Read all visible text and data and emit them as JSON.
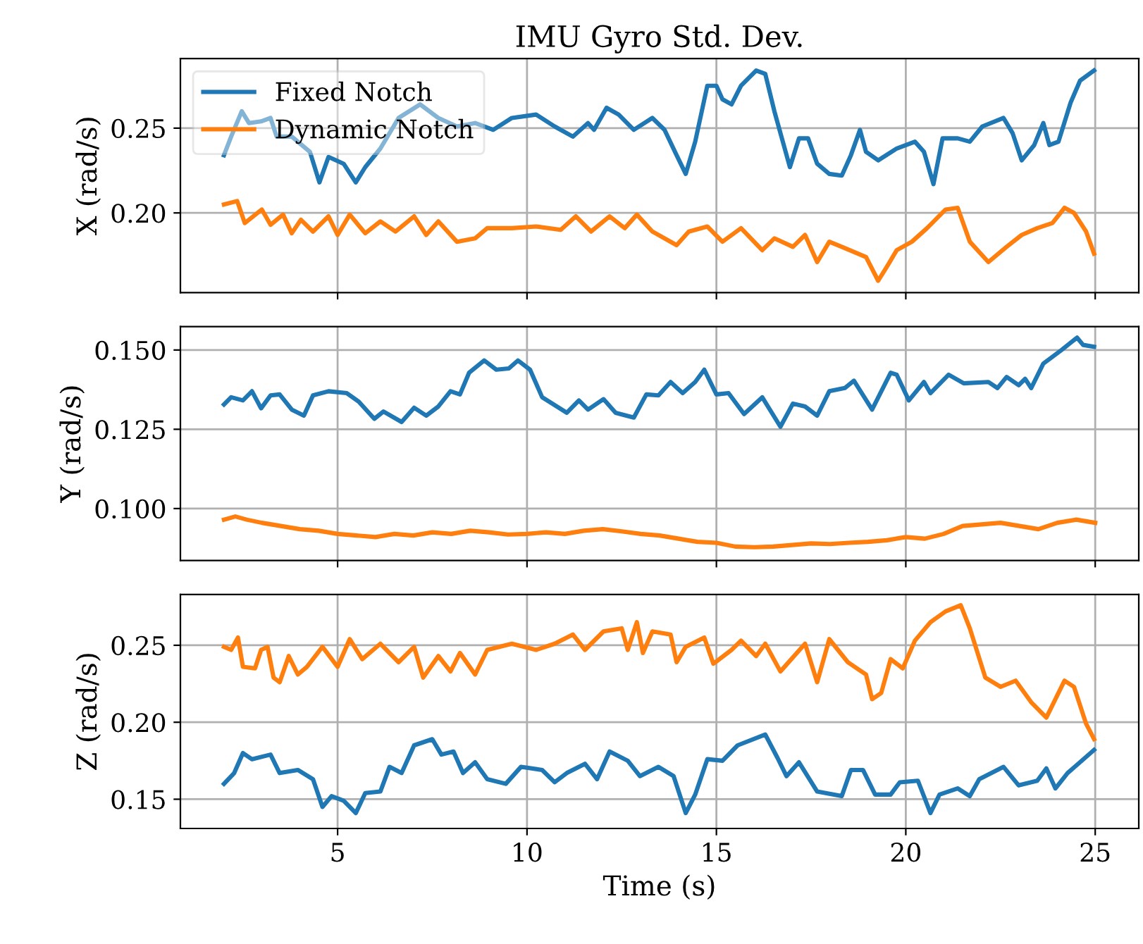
{
  "chart_data": [
    {
      "type": "line",
      "title": "IMU Gyro Std. Dev.",
      "ylabel": "X (rad/s)",
      "xlim": [
        0.85,
        26.15
      ],
      "xticks": [
        5,
        10,
        15,
        20,
        25
      ],
      "ylim": [
        0.153,
        0.291
      ],
      "yticks": [
        {
          "value": 0.2,
          "label": "0.20"
        },
        {
          "value": 0.25,
          "label": "0.25"
        }
      ],
      "grid": true,
      "legend": "top left",
      "tick_labels": "y",
      "series": [
        {
          "name": "Fixed Notch",
          "color": "#1f77b4",
          "x": [
            2.0,
            2.19,
            2.47,
            2.66,
            2.98,
            3.23,
            3.39,
            3.79,
            4.27,
            4.52,
            4.76,
            5.16,
            5.48,
            5.73,
            6.13,
            6.61,
            7.18,
            7.66,
            8.15,
            8.63,
            9.11,
            9.6,
            10.24,
            10.73,
            11.21,
            11.61,
            11.77,
            12.1,
            12.42,
            12.82,
            13.31,
            13.63,
            13.95,
            14.19,
            14.44,
            14.76,
            15.0,
            15.16,
            15.4,
            15.65,
            16.05,
            16.29,
            16.53,
            16.94,
            17.18,
            17.42,
            17.66,
            17.98,
            18.31,
            18.55,
            18.79,
            18.95,
            19.27,
            19.76,
            20.24,
            20.48,
            20.73,
            20.97,
            21.37,
            21.69,
            22.02,
            22.58,
            22.82,
            23.06,
            23.39,
            23.63,
            23.79,
            24.03,
            24.35,
            24.6,
            24.97
          ],
          "values": [
            0.234,
            0.245,
            0.26,
            0.253,
            0.254,
            0.256,
            0.245,
            0.245,
            0.236,
            0.218,
            0.233,
            0.229,
            0.218,
            0.227,
            0.238,
            0.256,
            0.264,
            0.256,
            0.251,
            0.253,
            0.249,
            0.256,
            0.258,
            0.251,
            0.245,
            0.253,
            0.249,
            0.262,
            0.258,
            0.249,
            0.256,
            0.249,
            0.234,
            0.223,
            0.242,
            0.275,
            0.275,
            0.267,
            0.264,
            0.275,
            0.284,
            0.282,
            0.26,
            0.227,
            0.244,
            0.244,
            0.229,
            0.223,
            0.222,
            0.234,
            0.249,
            0.236,
            0.231,
            0.238,
            0.242,
            0.236,
            0.217,
            0.244,
            0.244,
            0.242,
            0.251,
            0.256,
            0.247,
            0.231,
            0.24,
            0.253,
            0.24,
            0.242,
            0.265,
            0.278,
            0.284
          ]
        },
        {
          "name": "Dynamic Notch",
          "color": "#ff7f0e",
          "x": [
            2.0,
            2.35,
            2.55,
            3.0,
            3.23,
            3.56,
            3.79,
            4.03,
            4.35,
            4.76,
            5.0,
            5.32,
            5.73,
            6.13,
            6.53,
            7.02,
            7.34,
            7.66,
            8.15,
            8.63,
            8.95,
            9.6,
            10.24,
            10.89,
            11.29,
            11.69,
            12.18,
            12.58,
            12.9,
            13.31,
            13.95,
            14.27,
            14.76,
            15.16,
            15.65,
            16.21,
            16.53,
            17.02,
            17.34,
            17.66,
            17.98,
            18.31,
            18.95,
            19.27,
            19.52,
            19.76,
            20.16,
            20.56,
            21.05,
            21.37,
            21.69,
            22.18,
            22.66,
            23.06,
            23.47,
            23.87,
            24.19,
            24.44,
            24.76,
            24.97
          ],
          "values": [
            0.205,
            0.207,
            0.194,
            0.202,
            0.193,
            0.199,
            0.188,
            0.196,
            0.189,
            0.198,
            0.187,
            0.199,
            0.188,
            0.195,
            0.189,
            0.198,
            0.187,
            0.195,
            0.183,
            0.185,
            0.191,
            0.191,
            0.192,
            0.19,
            0.198,
            0.189,
            0.198,
            0.191,
            0.199,
            0.189,
            0.181,
            0.189,
            0.192,
            0.183,
            0.191,
            0.178,
            0.185,
            0.18,
            0.187,
            0.171,
            0.183,
            0.18,
            0.174,
            0.16,
            0.169,
            0.178,
            0.183,
            0.191,
            0.202,
            0.203,
            0.183,
            0.171,
            0.18,
            0.187,
            0.191,
            0.194,
            0.203,
            0.2,
            0.189,
            0.176
          ]
        }
      ]
    },
    {
      "type": "line",
      "ylabel": "Y (rad/s)",
      "xlim": [
        0.85,
        26.15
      ],
      "xticks": [
        5,
        10,
        15,
        20,
        25
      ],
      "ylim": [
        0.0836,
        0.1574
      ],
      "yticks": [
        {
          "value": 0.1,
          "label": "0.100"
        },
        0.125,
        {
          "value": 0.15,
          "label": "0.150"
        }
      ],
      "grid": true,
      "tick_labels": "y",
      "series": [
        {
          "color": "#1f77b4",
          "x": [
            2.0,
            2.19,
            2.5,
            2.74,
            2.98,
            3.23,
            3.47,
            3.79,
            4.11,
            4.35,
            4.76,
            5.24,
            5.56,
            5.97,
            6.21,
            6.69,
            7.02,
            7.34,
            7.66,
            7.98,
            8.23,
            8.47,
            8.87,
            9.19,
            9.52,
            9.76,
            10.08,
            10.4,
            11.05,
            11.37,
            11.61,
            12.02,
            12.34,
            12.82,
            13.15,
            13.47,
            13.79,
            14.11,
            14.44,
            14.68,
            15.0,
            15.32,
            15.73,
            16.21,
            16.69,
            17.02,
            17.34,
            17.66,
            17.98,
            18.39,
            18.63,
            19.11,
            19.6,
            19.76,
            20.08,
            20.48,
            20.65,
            21.13,
            21.53,
            22.18,
            22.42,
            22.66,
            22.98,
            23.15,
            23.31,
            23.63,
            24.11,
            24.52,
            24.68,
            24.97
          ],
          "values": [
            0.1328,
            0.1351,
            0.1341,
            0.137,
            0.1316,
            0.1357,
            0.136,
            0.1312,
            0.1293,
            0.1357,
            0.137,
            0.1364,
            0.1337,
            0.1283,
            0.1306,
            0.1273,
            0.1318,
            0.1293,
            0.1322,
            0.137,
            0.136,
            0.1428,
            0.1467,
            0.1438,
            0.1442,
            0.1467,
            0.1438,
            0.1351,
            0.1302,
            0.1341,
            0.1312,
            0.1345,
            0.1302,
            0.1287,
            0.136,
            0.1357,
            0.1399,
            0.1364,
            0.1399,
            0.1438,
            0.136,
            0.1364,
            0.1298,
            0.1351,
            0.1258,
            0.1331,
            0.1322,
            0.1293,
            0.137,
            0.138,
            0.1403,
            0.1312,
            0.1428,
            0.1422,
            0.1341,
            0.1399,
            0.1364,
            0.1422,
            0.1395,
            0.1399,
            0.138,
            0.1415,
            0.1389,
            0.1409,
            0.138,
            0.1457,
            0.15,
            0.1539,
            0.1516,
            0.151
          ]
        },
        {
          "color": "#ff7f0e",
          "x": [
            2.0,
            2.3,
            2.6,
            3.0,
            3.5,
            4.0,
            4.5,
            5.0,
            5.5,
            6.0,
            6.5,
            7.0,
            7.5,
            8.0,
            8.5,
            9.0,
            9.5,
            10.0,
            10.5,
            11.0,
            11.5,
            12.0,
            12.5,
            13.0,
            13.5,
            14.0,
            14.5,
            15.0,
            15.5,
            16.0,
            16.5,
            17.0,
            17.5,
            18.0,
            18.5,
            19.0,
            19.5,
            20.0,
            20.5,
            21.0,
            21.5,
            22.0,
            22.5,
            23.0,
            23.5,
            24.0,
            24.5,
            25.0
          ],
          "values": [
            0.0965,
            0.0975,
            0.0965,
            0.0955,
            0.0945,
            0.0935,
            0.093,
            0.092,
            0.0915,
            0.091,
            0.092,
            0.0915,
            0.0925,
            0.092,
            0.093,
            0.0925,
            0.0918,
            0.092,
            0.0925,
            0.092,
            0.093,
            0.0935,
            0.0928,
            0.092,
            0.0915,
            0.0905,
            0.0895,
            0.0892,
            0.088,
            0.0878,
            0.088,
            0.0885,
            0.089,
            0.0888,
            0.0892,
            0.0895,
            0.09,
            0.091,
            0.0905,
            0.092,
            0.0945,
            0.095,
            0.0955,
            0.0945,
            0.0935,
            0.0955,
            0.0965,
            0.0955
          ]
        }
      ]
    },
    {
      "type": "line",
      "ylabel": "Z (rad/s)",
      "xlabel": "Time (s)",
      "xlim": [
        0.85,
        26.15
      ],
      "xticks": [
        5,
        10,
        15,
        20,
        25
      ],
      "ylim": [
        0.131,
        0.283
      ],
      "yticks": [
        0.15,
        {
          "value": 0.2,
          "label": "0.20"
        },
        0.25
      ],
      "grid": true,
      "series": [
        {
          "color": "#1f77b4",
          "x": [
            2.0,
            2.27,
            2.5,
            2.74,
            3.23,
            3.47,
            3.95,
            4.35,
            4.6,
            4.84,
            5.16,
            5.48,
            5.73,
            6.13,
            6.37,
            6.69,
            7.02,
            7.5,
            7.74,
            8.06,
            8.31,
            8.63,
            8.95,
            9.44,
            9.84,
            10.4,
            10.73,
            11.05,
            11.53,
            11.85,
            12.18,
            12.66,
            12.98,
            13.47,
            13.87,
            14.19,
            14.44,
            14.76,
            15.16,
            15.56,
            16.29,
            16.61,
            16.85,
            17.18,
            17.66,
            18.31,
            18.55,
            18.87,
            19.19,
            19.6,
            19.84,
            20.32,
            20.65,
            20.89,
            21.37,
            21.69,
            21.94,
            22.58,
            22.98,
            23.47,
            23.71,
            23.95,
            24.27,
            24.97
          ],
          "values": [
            0.16,
            0.167,
            0.18,
            0.176,
            0.179,
            0.167,
            0.169,
            0.163,
            0.145,
            0.152,
            0.149,
            0.141,
            0.154,
            0.155,
            0.171,
            0.167,
            0.185,
            0.189,
            0.179,
            0.181,
            0.167,
            0.174,
            0.163,
            0.16,
            0.171,
            0.169,
            0.161,
            0.167,
            0.173,
            0.163,
            0.181,
            0.175,
            0.165,
            0.171,
            0.165,
            0.141,
            0.153,
            0.176,
            0.175,
            0.185,
            0.192,
            0.177,
            0.165,
            0.174,
            0.155,
            0.152,
            0.169,
            0.169,
            0.153,
            0.153,
            0.161,
            0.162,
            0.141,
            0.153,
            0.157,
            0.152,
            0.163,
            0.171,
            0.159,
            0.162,
            0.17,
            0.157,
            0.167,
            0.182
          ]
        },
        {
          "color": "#ff7f0e",
          "x": [
            2.0,
            2.19,
            2.37,
            2.5,
            2.82,
            2.98,
            3.15,
            3.31,
            3.47,
            3.71,
            3.95,
            4.19,
            4.6,
            5.0,
            5.32,
            5.65,
            6.13,
            6.61,
            7.02,
            7.26,
            7.66,
            7.98,
            8.23,
            8.63,
            8.95,
            9.6,
            10.24,
            10.73,
            11.21,
            11.53,
            12.02,
            12.5,
            12.66,
            12.9,
            13.06,
            13.31,
            13.79,
            13.95,
            14.19,
            14.68,
            14.92,
            15.4,
            15.65,
            16.05,
            16.29,
            16.69,
            17.34,
            17.66,
            17.98,
            18.47,
            18.95,
            19.11,
            19.35,
            19.6,
            19.92,
            20.24,
            20.65,
            21.05,
            21.45,
            21.69,
            22.1,
            22.5,
            22.9,
            23.31,
            23.71,
            23.95,
            24.19,
            24.44,
            24.76,
            24.97
          ],
          "values": [
            0.249,
            0.247,
            0.255,
            0.236,
            0.235,
            0.247,
            0.249,
            0.229,
            0.226,
            0.243,
            0.231,
            0.236,
            0.249,
            0.236,
            0.254,
            0.241,
            0.251,
            0.239,
            0.249,
            0.229,
            0.243,
            0.233,
            0.245,
            0.231,
            0.247,
            0.251,
            0.247,
            0.251,
            0.257,
            0.247,
            0.259,
            0.261,
            0.247,
            0.265,
            0.245,
            0.259,
            0.257,
            0.239,
            0.249,
            0.255,
            0.238,
            0.247,
            0.253,
            0.243,
            0.251,
            0.233,
            0.251,
            0.226,
            0.254,
            0.239,
            0.231,
            0.215,
            0.219,
            0.241,
            0.235,
            0.253,
            0.265,
            0.272,
            0.276,
            0.261,
            0.229,
            0.223,
            0.227,
            0.213,
            0.203,
            0.215,
            0.227,
            0.223,
            0.199,
            0.189
          ]
        }
      ]
    }
  ]
}
